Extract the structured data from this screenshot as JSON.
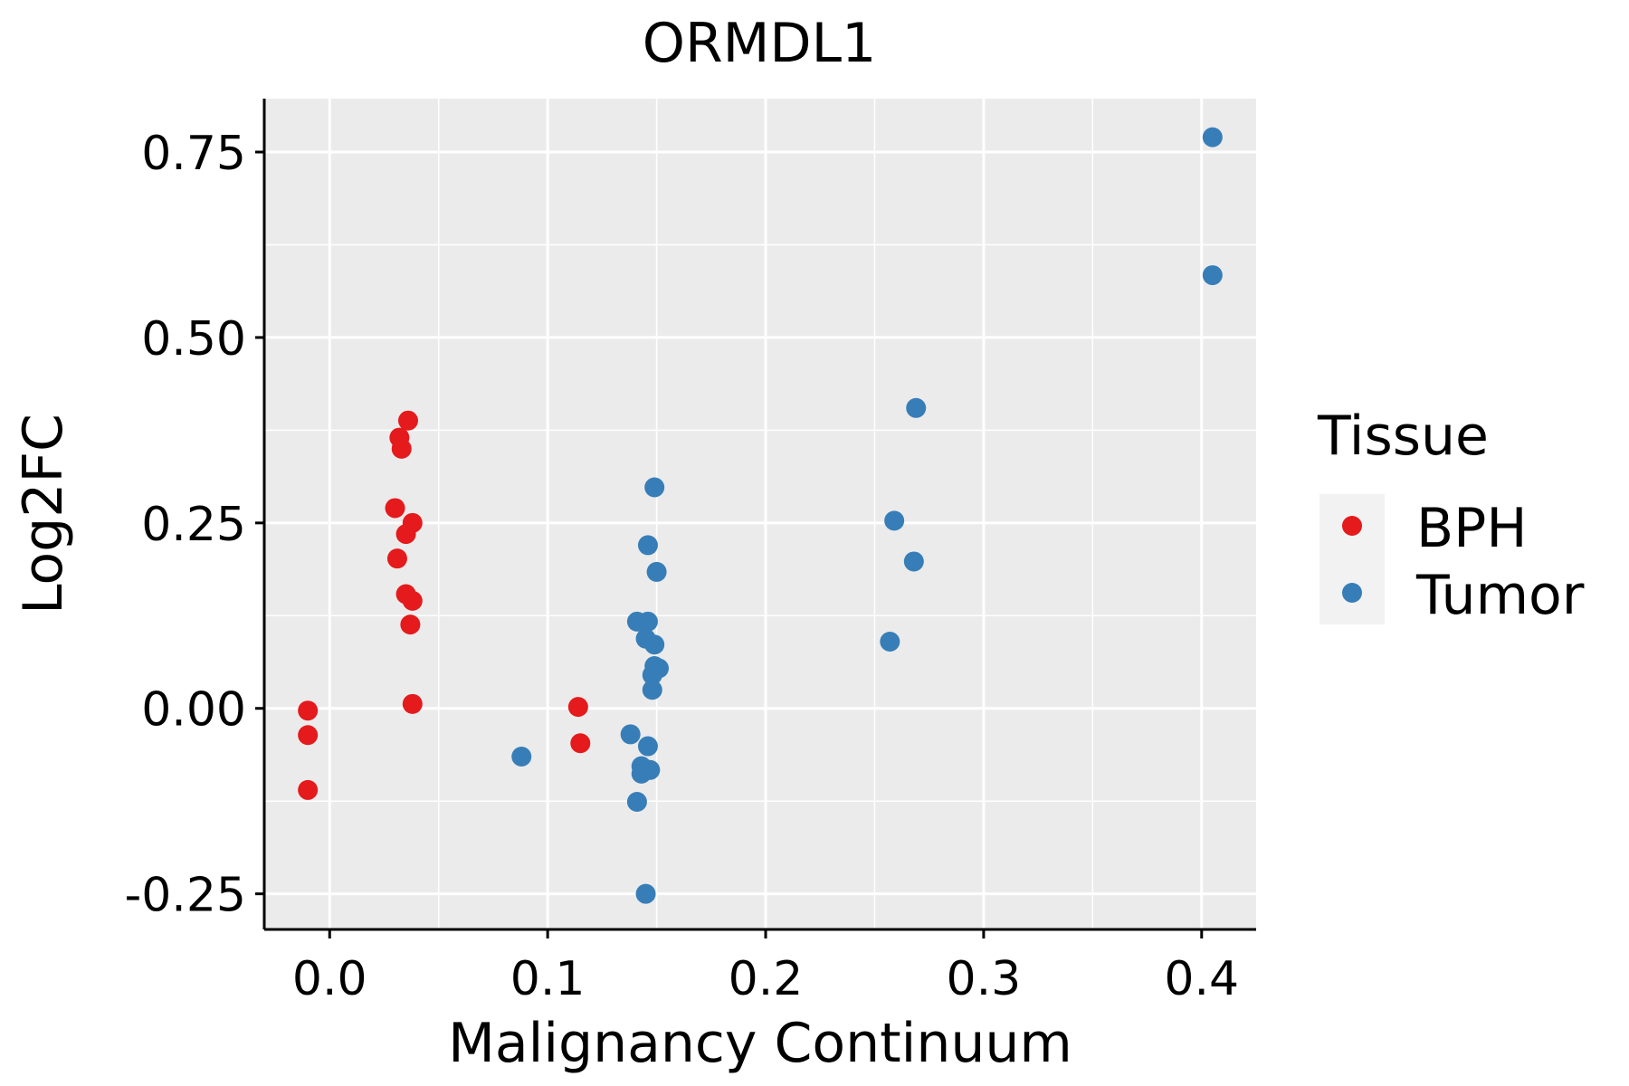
{
  "chart_data": {
    "type": "scatter",
    "title": "ORMDL1",
    "xlabel": "Malignancy Continuum",
    "ylabel": "Log2FC",
    "xlim": [
      -0.03,
      0.425
    ],
    "ylim": [
      -0.298,
      0.822
    ],
    "x_ticks": [
      0.0,
      0.1,
      0.2,
      0.3,
      0.4
    ],
    "x_tick_labels": [
      "0.0",
      "0.1",
      "0.2",
      "0.3",
      "0.4"
    ],
    "y_ticks": [
      -0.25,
      0.0,
      0.25,
      0.5,
      0.75
    ],
    "y_tick_labels": [
      "-0.25",
      "0.00",
      "0.25",
      "0.50",
      "0.75"
    ],
    "x_minor": [
      0.05,
      0.15,
      0.25,
      0.35
    ],
    "y_minor": [
      -0.125,
      0.125,
      0.375,
      0.625
    ],
    "grid": true,
    "panel_background": "#EBEBEB",
    "grid_color": "#FFFFFF",
    "legend": {
      "title": "Tissue",
      "position": "right",
      "entries": [
        {
          "label": "BPH",
          "color": "#E41A1C"
        },
        {
          "label": "Tumor",
          "color": "#377EB8"
        }
      ]
    },
    "series": [
      {
        "name": "BPH",
        "color": "#E41A1C",
        "points": [
          {
            "x": 0.036,
            "y": 0.388
          },
          {
            "x": 0.032,
            "y": 0.365
          },
          {
            "x": 0.033,
            "y": 0.35
          },
          {
            "x": 0.03,
            "y": 0.27
          },
          {
            "x": 0.038,
            "y": 0.25
          },
          {
            "x": 0.035,
            "y": 0.235
          },
          {
            "x": 0.031,
            "y": 0.202
          },
          {
            "x": 0.035,
            "y": 0.154
          },
          {
            "x": 0.038,
            "y": 0.145
          },
          {
            "x": 0.037,
            "y": 0.113
          },
          {
            "x": 0.038,
            "y": 0.006
          },
          {
            "x": -0.01,
            "y": -0.003
          },
          {
            "x": -0.01,
            "y": -0.036
          },
          {
            "x": -0.01,
            "y": -0.11
          },
          {
            "x": 0.114,
            "y": 0.002
          },
          {
            "x": 0.115,
            "y": -0.047
          }
        ]
      },
      {
        "name": "Tumor",
        "color": "#377EB8",
        "points": [
          {
            "x": 0.405,
            "y": 0.77
          },
          {
            "x": 0.405,
            "y": 0.584
          },
          {
            "x": 0.269,
            "y": 0.405
          },
          {
            "x": 0.259,
            "y": 0.253
          },
          {
            "x": 0.268,
            "y": 0.198
          },
          {
            "x": 0.257,
            "y": 0.09
          },
          {
            "x": 0.149,
            "y": 0.298
          },
          {
            "x": 0.146,
            "y": 0.22
          },
          {
            "x": 0.15,
            "y": 0.184
          },
          {
            "x": 0.141,
            "y": 0.117
          },
          {
            "x": 0.146,
            "y": 0.117
          },
          {
            "x": 0.145,
            "y": 0.094
          },
          {
            "x": 0.149,
            "y": 0.086
          },
          {
            "x": 0.149,
            "y": 0.057
          },
          {
            "x": 0.151,
            "y": 0.054
          },
          {
            "x": 0.148,
            "y": 0.045
          },
          {
            "x": 0.148,
            "y": 0.025
          },
          {
            "x": 0.138,
            "y": -0.035
          },
          {
            "x": 0.146,
            "y": -0.051
          },
          {
            "x": 0.143,
            "y": -0.078
          },
          {
            "x": 0.147,
            "y": -0.083
          },
          {
            "x": 0.143,
            "y": -0.088
          },
          {
            "x": 0.141,
            "y": -0.126
          },
          {
            "x": 0.088,
            "y": -0.065
          },
          {
            "x": 0.145,
            "y": -0.25
          }
        ]
      }
    ]
  }
}
